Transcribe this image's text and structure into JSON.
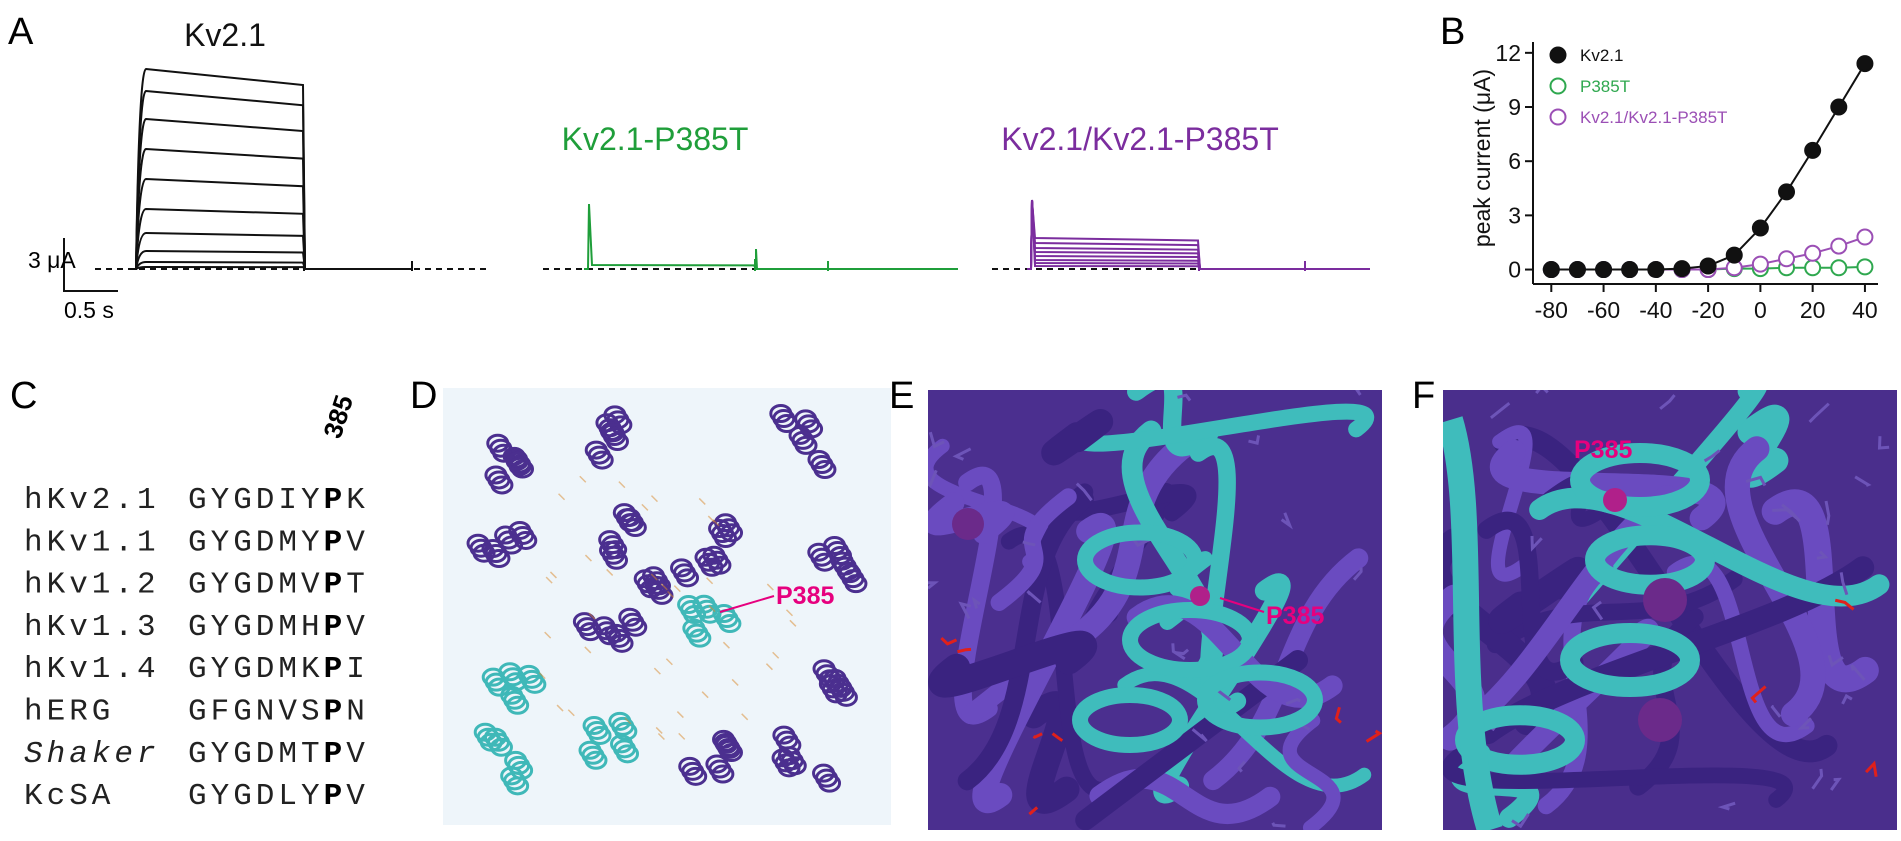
{
  "panel_labels": [
    "A",
    "B",
    "C",
    "D",
    "E",
    "F"
  ],
  "panel_a": {
    "traces": [
      {
        "label": "Kv2.1",
        "color": "#111111"
      },
      {
        "label": "Kv2.1-P385T",
        "color": "#1f9e3a"
      },
      {
        "label": "Kv2.1/Kv2.1-P385T",
        "color": "#7b2d9e"
      }
    ],
    "scale_bar": {
      "current": "3 μA",
      "time": "0.5 s"
    }
  },
  "chart_data": {
    "type": "line",
    "ylabel": "peak current (μA)",
    "x": [
      -80,
      -70,
      -60,
      -50,
      -40,
      -30,
      -20,
      -10,
      0,
      10,
      20,
      30,
      40
    ],
    "series": [
      {
        "name": "P385T",
        "color": "#2fa84f",
        "marker": "open",
        "values": [
          0,
          0,
          0,
          0,
          0,
          0,
          0,
          0.05,
          0.05,
          0.1,
          0.1,
          0.1,
          0.15
        ]
      },
      {
        "name": "Kv2.1/Kv2.1-P385T",
        "color": "#9b4fb5",
        "marker": "open",
        "values": [
          0,
          0,
          0,
          0,
          0,
          0,
          0,
          0.1,
          0.3,
          0.6,
          0.9,
          1.3,
          1.8
        ]
      },
      {
        "name": "Kv2.1",
        "color": "#111111",
        "marker": "filled",
        "values": [
          0,
          0,
          0,
          0,
          0,
          0.05,
          0.2,
          0.8,
          2.3,
          4.3,
          6.6,
          9.0,
          11.4
        ]
      }
    ],
    "xlim": [
      -87,
      45
    ],
    "ylim": [
      -0.8,
      12.6
    ],
    "xticks": [
      -80,
      -60,
      -40,
      -20,
      0,
      20,
      40
    ],
    "yticks": [
      0,
      3,
      6,
      9,
      12
    ],
    "legend": "upper left"
  },
  "panel_c": {
    "position": "385",
    "rows": [
      {
        "name": "hKv2.1",
        "prefix": "GYGDIY",
        "residue": "P",
        "suffix": "K"
      },
      {
        "name": "hKv1.1",
        "prefix": "GYGDMY",
        "residue": "P",
        "suffix": "V"
      },
      {
        "name": "hKv1.2",
        "prefix": "GYGDMV",
        "residue": "P",
        "suffix": "T"
      },
      {
        "name": "hKv1.3",
        "prefix": "GYGDMH",
        "residue": "P",
        "suffix": "V"
      },
      {
        "name": "hKv1.4",
        "prefix": "GYGDMK",
        "residue": "P",
        "suffix": "I"
      },
      {
        "name": "hERG",
        "prefix": "GFGNVS",
        "residue": "P",
        "suffix": "N"
      },
      {
        "name": "Shaker",
        "style": "italic",
        "prefix": "GYGDMT",
        "residue": "P",
        "suffix": "V"
      },
      {
        "name": "KcSA",
        "prefix": "GYGDLY",
        "residue": "P",
        "suffix": "V"
      }
    ]
  },
  "structure_labels": {
    "d": "P385",
    "e": "P385",
    "f": "P385"
  }
}
